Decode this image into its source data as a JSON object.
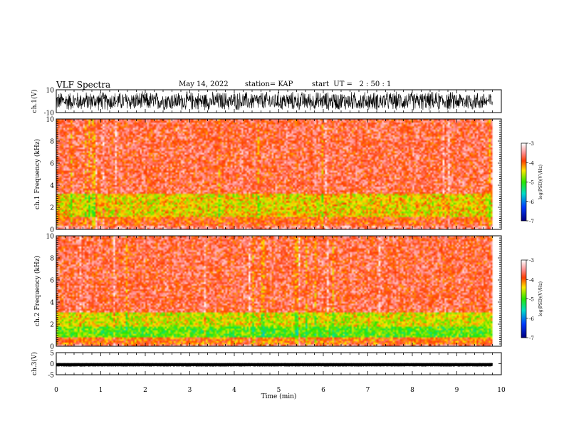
{
  "header": {
    "title": "VLF Spectra",
    "date": "May 14, 2022",
    "station": "station= KAP",
    "start": "start  UT =   2 : 50 : 1"
  },
  "chart_data": [
    {
      "type": "line",
      "panel": "ch1-waveform",
      "ylabel": "ch.1(V)",
      "ylim": [
        -10,
        10
      ],
      "yticks": [
        "10",
        "-10"
      ],
      "xlim": [
        0,
        10
      ],
      "color": "#000000",
      "description_values": {
        "x_end": 9.8,
        "amplitude_approx": [
          -9,
          9
        ]
      }
    },
    {
      "type": "heatmap",
      "panel": "ch1-spectrogram",
      "ylabel": "ch.1  Frequency  (kHz)",
      "ylim": [
        0,
        10
      ],
      "yticks": [
        "0",
        "2",
        "4",
        "6",
        "8",
        "10"
      ],
      "xlim": [
        0,
        10
      ],
      "x_end": 9.8,
      "zlabel": "log(PSD)(V²/Hz)",
      "zlim": [
        -7,
        -3
      ],
      "zticks": [
        "-3",
        "-4",
        "-5",
        "-6",
        "-7"
      ],
      "bands": [
        {
          "f_from": 3.3,
          "f_to": 10,
          "level": -3.7
        },
        {
          "f_from": 1.2,
          "f_to": 3.3,
          "level": -4.4
        },
        {
          "f_from": 0.3,
          "f_to": 1.2,
          "level": -3.9
        }
      ]
    },
    {
      "type": "heatmap",
      "panel": "ch2-spectrogram",
      "ylabel": "ch.2  Frequency  (kHz)",
      "ylim": [
        0,
        10
      ],
      "yticks": [
        "0",
        "2",
        "4",
        "6",
        "8",
        "10"
      ],
      "xlim": [
        0,
        10
      ],
      "x_end": 9.8,
      "zlabel": "log(PSD)(V²/Hz)",
      "zlim": [
        -7,
        -3
      ],
      "zticks": [
        "-3",
        "-4",
        "-5",
        "-6",
        "-7"
      ],
      "bands": [
        {
          "f_from": 3.0,
          "f_to": 10,
          "level": -3.7
        },
        {
          "f_from": 1.8,
          "f_to": 3.0,
          "level": -4.5
        },
        {
          "f_from": 0.8,
          "f_to": 1.8,
          "level": -4.9
        },
        {
          "f_from": 0.2,
          "f_to": 0.8,
          "level": -4.0
        }
      ]
    },
    {
      "type": "line",
      "panel": "ch3-waveform",
      "ylabel": "ch.3(V)",
      "ylim": [
        -5,
        5
      ],
      "yticks": [
        "5",
        "0",
        "-5"
      ],
      "xlim": [
        0,
        10
      ],
      "xticks": [
        "0",
        "1",
        "2",
        "3",
        "4",
        "5",
        "6",
        "7",
        "8",
        "9",
        "10"
      ],
      "xlabel": "Time  (min)",
      "color": "#000000",
      "description_values": {
        "x_end": 9.8,
        "amplitude_approx": [
          -1.3,
          0.3
        ]
      }
    }
  ]
}
